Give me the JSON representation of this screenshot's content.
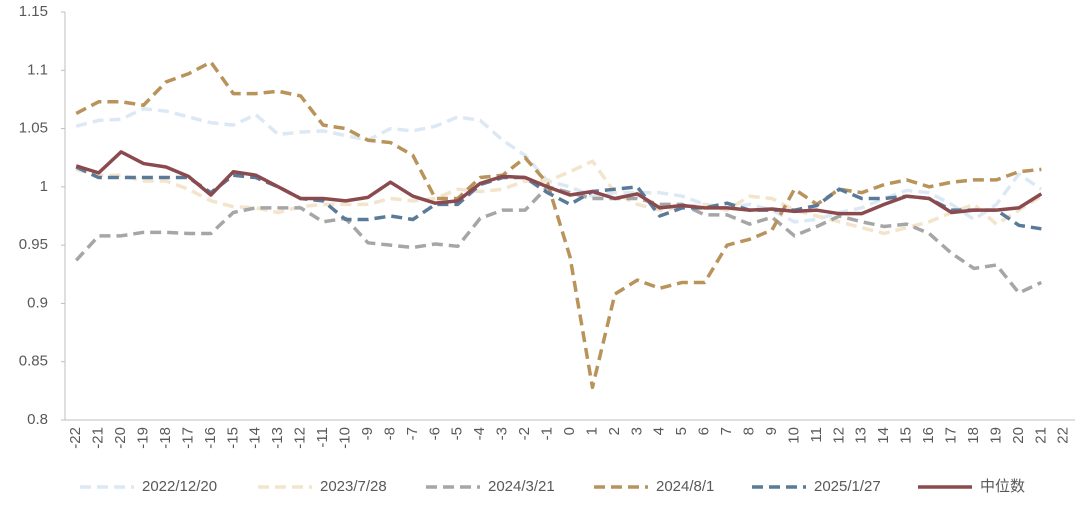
{
  "chart_data": {
    "type": "line",
    "categories": [
      "-22",
      "-21",
      "-20",
      "-19",
      "-18",
      "-17",
      "-16",
      "-15",
      "-14",
      "-13",
      "-12",
      "-11",
      "-10",
      "-9",
      "-8",
      "-7",
      "-6",
      "-5",
      "-4",
      "-3",
      "-2",
      "-1",
      "0",
      "1",
      "2",
      "3",
      "4",
      "5",
      "6",
      "7",
      "8",
      "9",
      "10",
      "11",
      "12",
      "13",
      "14",
      "15",
      "16",
      "17",
      "18",
      "19",
      "20",
      "21",
      "22"
    ],
    "ylim": [
      0.8,
      1.15
    ],
    "yticks": [
      0.8,
      0.85,
      0.9,
      0.95,
      1,
      1.05,
      1.1,
      1.15
    ],
    "grid": false,
    "legend": "bottom",
    "series": [
      {
        "name": "2022/12/20",
        "color": "#dce9f5",
        "dashed": true,
        "values": [
          1.052,
          1.057,
          1.058,
          1.067,
          1.065,
          1.06,
          1.055,
          1.053,
          1.062,
          1.045,
          1.047,
          1.048,
          1.044,
          1.04,
          1.05,
          1.048,
          1.052,
          1.06,
          1.057,
          1.04,
          1.027,
          1.005,
          1.0,
          0.992,
          0.995,
          0.995,
          0.995,
          0.992,
          0.985,
          0.982,
          0.985,
          0.98,
          0.97,
          0.972,
          0.978,
          0.982,
          0.99,
          0.997,
          0.995,
          0.985,
          0.972,
          0.985,
          1.011,
          0.998,
          null
        ]
      },
      {
        "name": "2023/7/28",
        "color": "#f3e4cc",
        "dashed": true,
        "values": [
          1.015,
          1.01,
          1.01,
          1.005,
          1.005,
          0.998,
          0.988,
          0.983,
          0.982,
          0.978,
          0.983,
          0.985,
          0.985,
          0.985,
          0.99,
          0.988,
          0.99,
          0.998,
          0.996,
          0.998,
          1.005,
          1.005,
          1.013,
          1.022,
          0.995,
          0.985,
          0.98,
          0.983,
          0.985,
          0.98,
          0.992,
          0.99,
          0.98,
          0.975,
          0.97,
          0.965,
          0.96,
          0.965,
          0.97,
          0.978,
          0.985,
          0.968,
          0.98,
          0.992,
          null
        ]
      },
      {
        "name": "2024/3/21",
        "color": "#a6a6a6",
        "dashed": true,
        "values": [
          0.937,
          0.958,
          0.958,
          0.961,
          0.961,
          0.96,
          0.96,
          0.978,
          0.982,
          0.982,
          0.982,
          0.97,
          0.973,
          0.952,
          0.95,
          0.948,
          0.951,
          0.949,
          0.973,
          0.98,
          0.98,
          1.0,
          0.995,
          0.99,
          0.99,
          0.99,
          0.985,
          0.985,
          0.976,
          0.976,
          0.968,
          0.974,
          0.958,
          0.966,
          0.975,
          0.97,
          0.966,
          0.968,
          0.96,
          0.943,
          0.93,
          0.933,
          0.909,
          0.918,
          null
        ]
      },
      {
        "name": "2024/8/1",
        "color": "#b8935a",
        "dashed": true,
        "values": [
          1.063,
          1.073,
          1.073,
          1.07,
          1.09,
          1.097,
          1.107,
          1.08,
          1.08,
          1.082,
          1.078,
          1.053,
          1.05,
          1.04,
          1.038,
          1.027,
          0.99,
          0.99,
          1.008,
          1.01,
          1.025,
          1.003,
          0.94,
          0.828,
          0.908,
          0.92,
          0.913,
          0.918,
          0.918,
          0.95,
          0.955,
          0.963,
          0.998,
          0.985,
          0.998,
          0.995,
          1.002,
          1.006,
          1.0,
          1.004,
          1.006,
          1.006,
          1.013,
          1.015,
          null
        ]
      },
      {
        "name": "2025/1/27",
        "color": "#5a7a99",
        "dashed": true,
        "values": [
          1.017,
          1.008,
          1.008,
          1.008,
          1.008,
          1.008,
          0.995,
          1.01,
          1.008,
          1.0,
          0.99,
          0.988,
          0.972,
          0.972,
          0.975,
          0.972,
          0.985,
          0.985,
          1.002,
          1.008,
          1.008,
          0.995,
          0.985,
          0.996,
          0.998,
          1.0,
          0.975,
          0.982,
          0.982,
          0.986,
          0.98,
          0.98,
          0.98,
          0.984,
          0.998,
          0.99,
          0.99,
          0.992,
          0.99,
          0.98,
          0.98,
          0.98,
          0.967,
          0.964,
          null
        ]
      },
      {
        "name": "中位数",
        "color": "#8b4a4e",
        "dashed": false,
        "values": [
          1.018,
          1.012,
          1.03,
          1.02,
          1.017,
          1.009,
          0.993,
          1.013,
          1.01,
          1.0,
          0.99,
          0.99,
          0.988,
          0.991,
          1.004,
          0.992,
          0.986,
          0.988,
          1.003,
          1.009,
          1.008,
          1.0,
          0.993,
          0.996,
          0.99,
          0.994,
          0.982,
          0.984,
          0.982,
          0.982,
          0.98,
          0.981,
          0.979,
          0.98,
          0.977,
          0.977,
          0.985,
          0.992,
          0.99,
          0.978,
          0.98,
          0.98,
          0.982,
          0.994,
          null
        ]
      }
    ]
  }
}
